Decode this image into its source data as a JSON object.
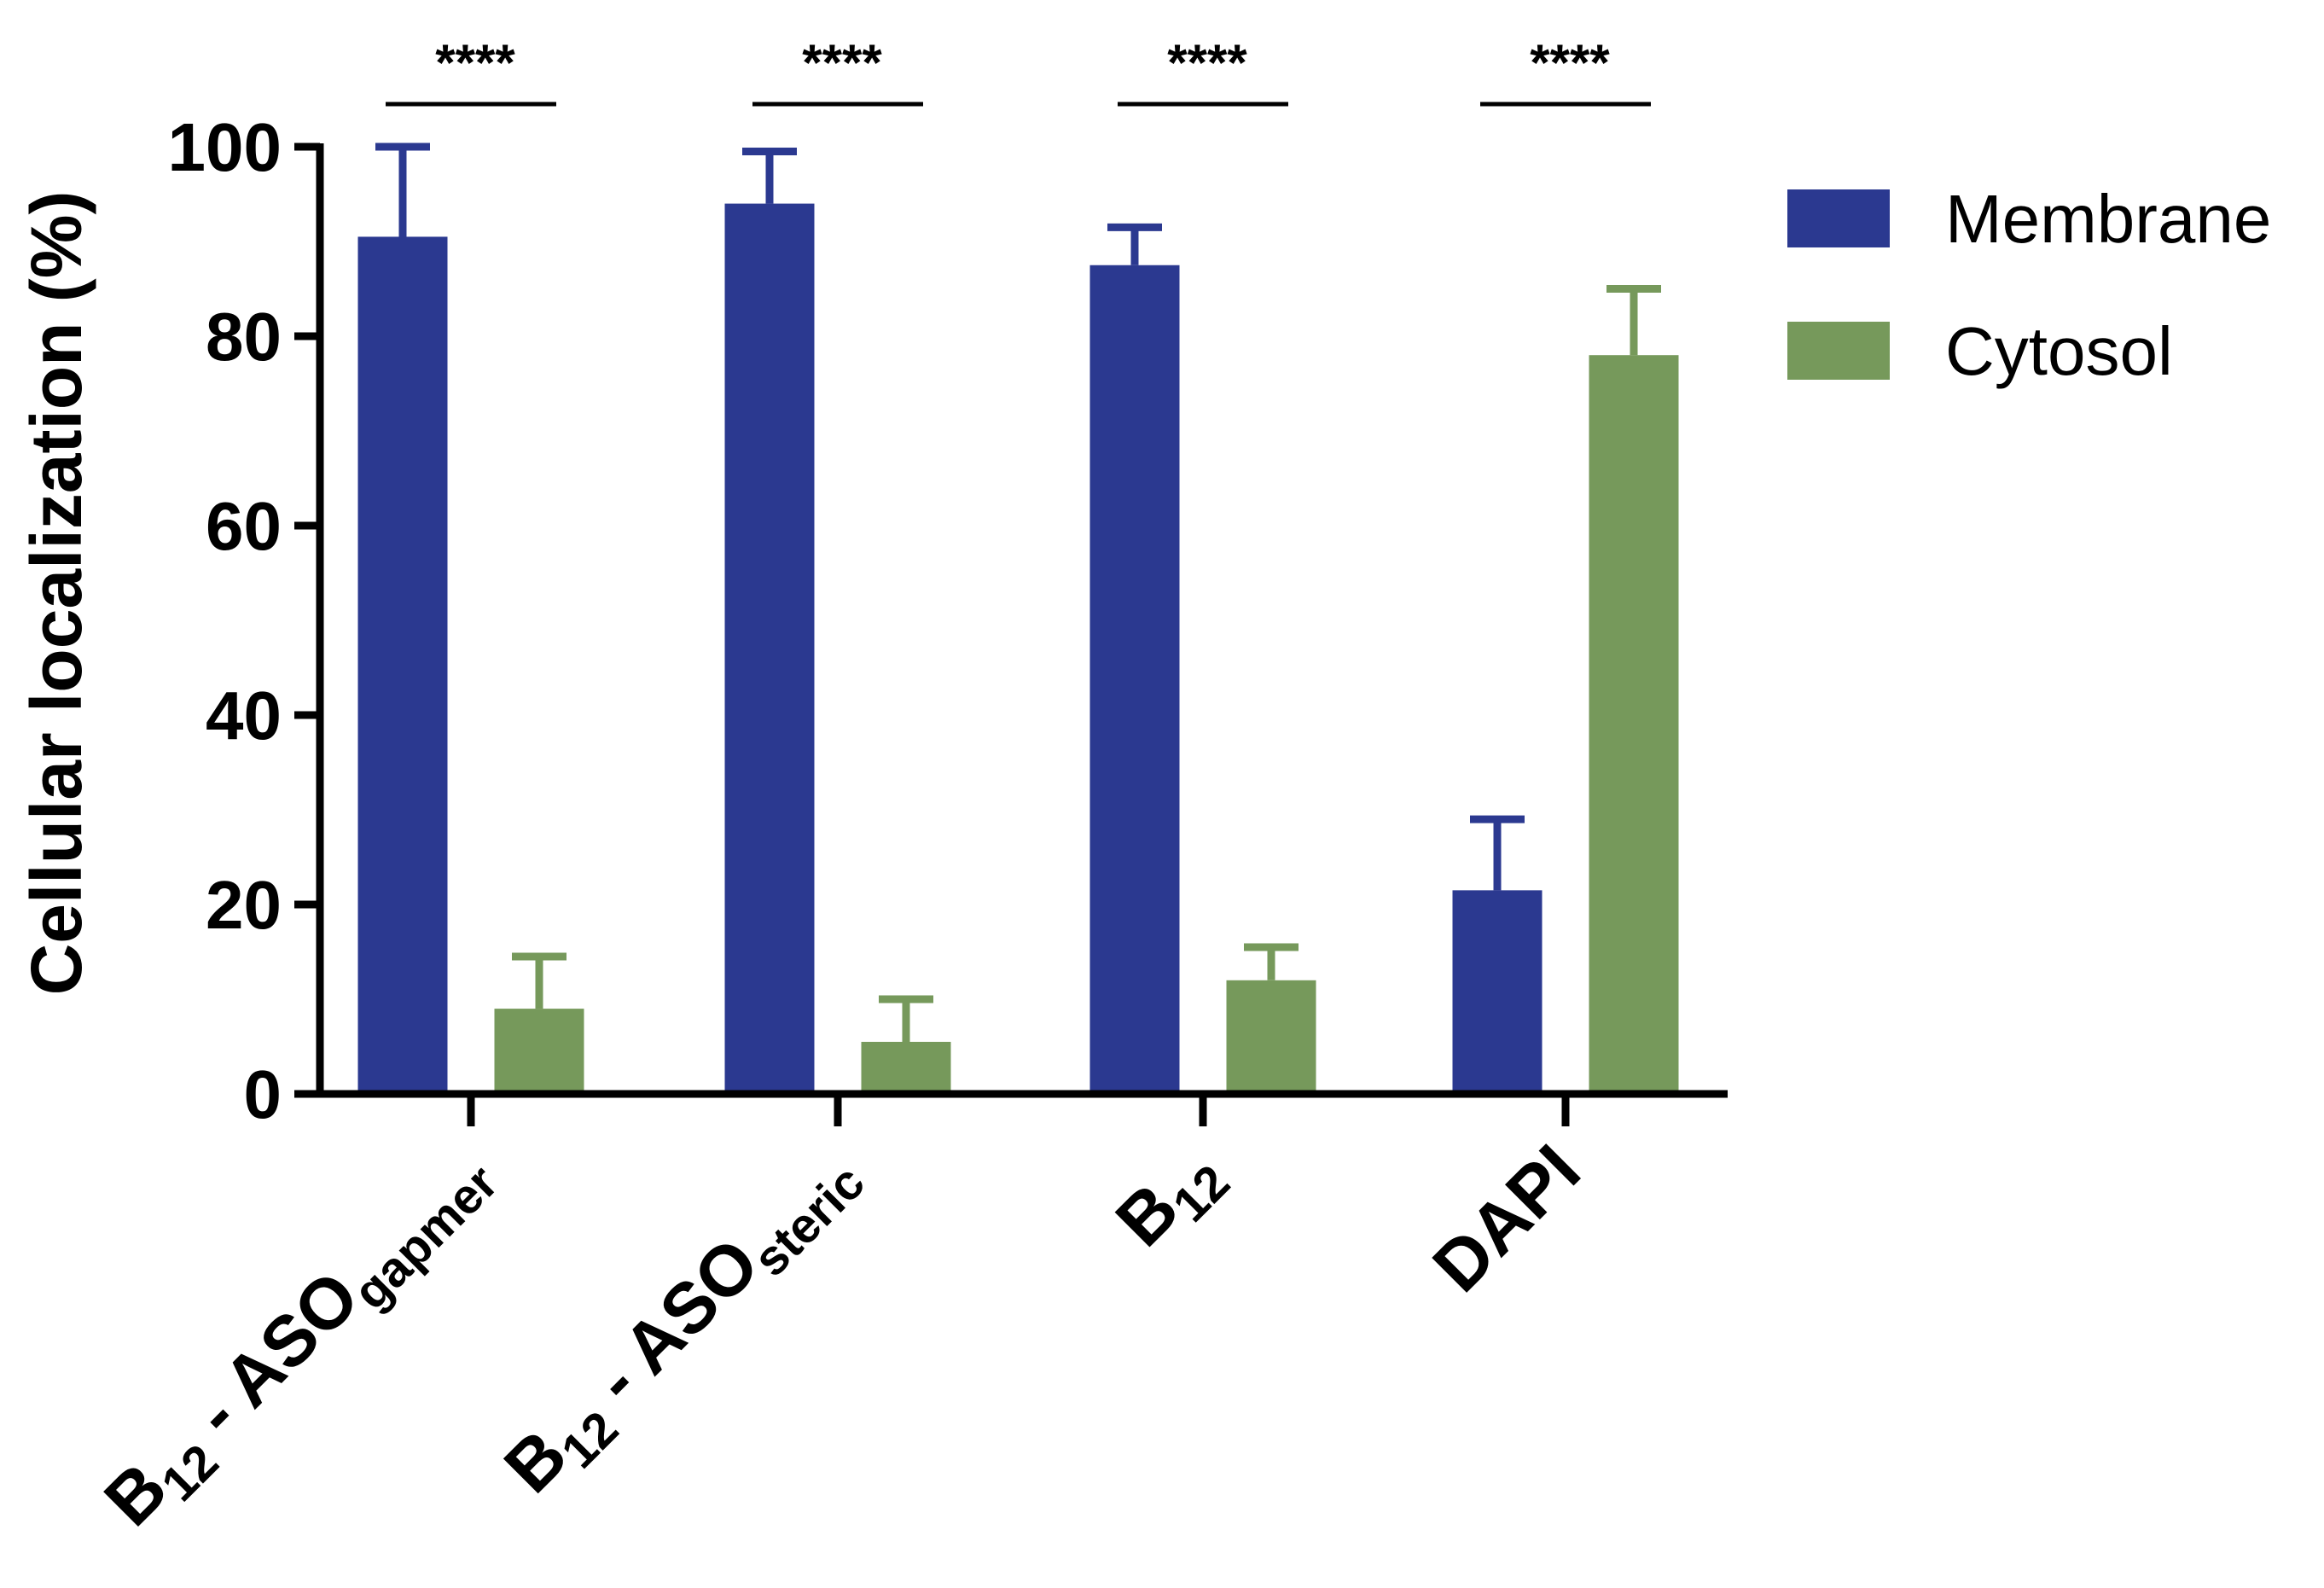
{
  "chart_data": {
    "type": "bar",
    "title": "",
    "xlabel": "",
    "ylabel": "Cellular localization (%)",
    "ylim": [
      0,
      100
    ],
    "yticks": [
      "0",
      "20",
      "40",
      "60",
      "80",
      "100"
    ],
    "categories": [
      {
        "main": "B",
        "sub1": "12",
        "mid": " - ASO",
        "sub2": "gapmer"
      },
      {
        "main": "B",
        "sub1": "12",
        "mid": " - ASO",
        "sub2": "steric"
      },
      {
        "main": "B",
        "sub1": "12",
        "mid": "",
        "sub2": ""
      },
      {
        "main": "DAPI",
        "sub1": "",
        "mid": "",
        "sub2": ""
      }
    ],
    "series": [
      {
        "name": "Membrane",
        "color": "#2b3990",
        "values": [
          90.5,
          94,
          87.5,
          21.5
        ],
        "errors": [
          9.5,
          5.5,
          4,
          7.5
        ]
      },
      {
        "name": "Cytosol",
        "color": "#76995b",
        "values": [
          9,
          5.5,
          12,
          78
        ],
        "errors": [
          5.5,
          4.5,
          3.5,
          7
        ]
      }
    ],
    "significance": [
      "****",
      "****",
      "****",
      "****"
    ],
    "legend_position": "top-right"
  }
}
